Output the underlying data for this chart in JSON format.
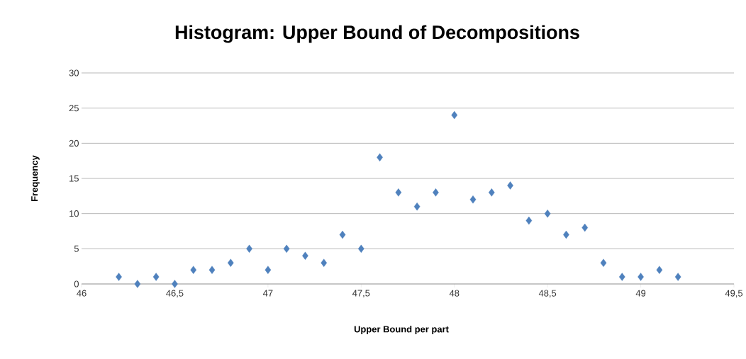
{
  "chart_data": {
    "type": "scatter",
    "title": "Histogram: Upper Bound of Decompositions",
    "xlabel": "Upper Bound per part",
    "ylabel": "Frequency",
    "x": [
      46.2,
      46.3,
      46.4,
      46.5,
      46.6,
      46.7,
      46.8,
      46.9,
      47.0,
      47.1,
      47.2,
      47.3,
      47.4,
      47.5,
      47.6,
      47.7,
      47.8,
      47.9,
      48.0,
      48.1,
      48.2,
      48.3,
      48.4,
      48.5,
      48.6,
      48.7,
      48.8,
      48.9,
      49.0,
      49.1,
      49.2
    ],
    "values": [
      1,
      0,
      1,
      0,
      2,
      2,
      3,
      5,
      2,
      5,
      4,
      3,
      7,
      5,
      18,
      13,
      11,
      13,
      24,
      12,
      13,
      14,
      9,
      10,
      7,
      8,
      3,
      1,
      1,
      2,
      1
    ],
    "color": "#4f81bd",
    "marker": "diamond",
    "xlim": [
      46,
      49.5
    ],
    "xticks": [
      46,
      {
        "value": 46.5,
        "label": "46,5"
      },
      47,
      {
        "value": 47.5,
        "label": "47,5"
      },
      48,
      {
        "value": 48.5,
        "label": "48,5"
      },
      49,
      {
        "value": 49.5,
        "label": "49,5"
      }
    ],
    "ylim": [
      0,
      30
    ],
    "yticks": [
      0,
      5,
      10,
      15,
      20,
      25,
      30
    ],
    "grid": "y"
  }
}
